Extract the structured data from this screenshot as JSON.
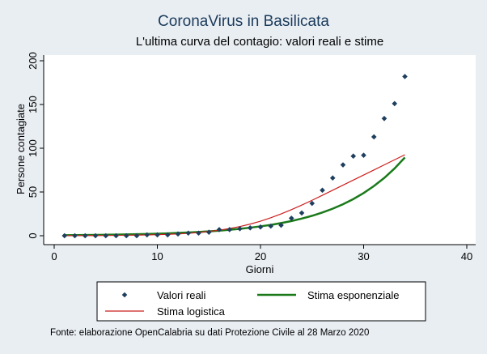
{
  "colors": {
    "background": "#e9eef3",
    "plot_background": "#ffffff",
    "title": "#1a3a5a",
    "marker": "#1f3f5f",
    "exponential": "#1a7a1a",
    "logistic": "#cc1f1f"
  },
  "footnote": "Fonte: elaborazione OpenCalabria su dati Protezione Civile al 28 Marzo 2020",
  "chart_data": {
    "type": "scatter",
    "title": "CoronaVirus in Basilicata",
    "subtitle": "L'ultima curva del contagio: valori reali e stime",
    "xlabel": "Giorni",
    "ylabel": "Persone contagiate",
    "xlim": [
      0,
      40
    ],
    "ylim": [
      0,
      200
    ],
    "x_ticks": [
      0,
      10,
      20,
      30,
      40
    ],
    "y_ticks": [
      0,
      50,
      100,
      150,
      200
    ],
    "grid": false,
    "legend_position": "bottom",
    "series": [
      {
        "name": "Valori reali",
        "kind": "points",
        "x": [
          1,
          2,
          3,
          4,
          5,
          6,
          7,
          8,
          9,
          10,
          11,
          12,
          13,
          14,
          15,
          16,
          17,
          18,
          19,
          20,
          21,
          22,
          23,
          24,
          25,
          26,
          27,
          28,
          29,
          30,
          31,
          32,
          33,
          34
        ],
        "values": [
          0,
          0,
          0,
          0,
          0,
          0,
          0,
          0,
          1,
          1,
          1,
          2,
          3,
          3,
          4,
          7,
          7,
          8,
          9,
          10,
          11,
          12,
          20,
          26,
          37,
          52,
          66,
          81,
          91,
          92,
          113,
          134,
          151,
          182
        ]
      },
      {
        "name": "Stima esponenziale",
        "kind": "line",
        "x": [
          1,
          2,
          3,
          4,
          5,
          6,
          7,
          8,
          9,
          10,
          11,
          12,
          13,
          14,
          15,
          16,
          17,
          18,
          19,
          20,
          21,
          22,
          23,
          24,
          25,
          26,
          27,
          28,
          29,
          30,
          31,
          32,
          33,
          34
        ],
        "values": [
          0.6,
          0.7,
          0.8,
          0.9,
          1.1,
          1.3,
          1.5,
          1.7,
          2.0,
          2.3,
          2.7,
          3.2,
          3.7,
          4.3,
          5.0,
          5.8,
          6.8,
          7.9,
          9.2,
          10.7,
          12.4,
          14.5,
          16.8,
          19.6,
          22.8,
          26.6,
          30.9,
          36.0,
          41.9,
          48.8,
          56.8,
          66.1,
          76.9,
          89.5
        ]
      },
      {
        "name": "Stima logistica",
        "kind": "line",
        "x": [
          1,
          2,
          3,
          4,
          5,
          6,
          7,
          8,
          9,
          10,
          11,
          12,
          13,
          14,
          15,
          16,
          17,
          18,
          19,
          20,
          21,
          22,
          23,
          24,
          25,
          26,
          27,
          28,
          29,
          30,
          31,
          32,
          33,
          34
        ],
        "values": [
          0.1,
          0.1,
          0.2,
          0.2,
          0.3,
          0.4,
          0.5,
          0.7,
          0.9,
          1.2,
          1.6,
          2.1,
          2.8,
          3.7,
          4.9,
          6.3,
          8.2,
          10.5,
          13.3,
          16.6,
          20.5,
          24.9,
          29.8,
          35.0,
          40.5,
          46.2,
          52.0,
          57.8,
          63.6,
          69.4,
          75.2,
          81.0,
          86.8,
          92.6
        ]
      }
    ]
  }
}
